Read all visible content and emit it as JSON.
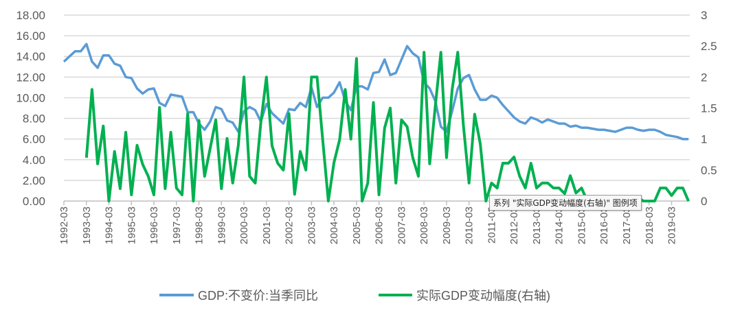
{
  "chart_data": {
    "type": "line",
    "title": "",
    "frequency": "quarterly",
    "x_start": "1992-03",
    "x_end": "2019-12",
    "x_tick_labels": [
      "1992-03",
      "1993-03",
      "1994-03",
      "1995-03",
      "1996-03",
      "1997-03",
      "1998-03",
      "1999-03",
      "2000-03",
      "2001-03",
      "2002-03",
      "2003-03",
      "2004-03",
      "2005-03",
      "2006-03",
      "2007-03",
      "2008-03",
      "2009-03",
      "2010-03",
      "2011-03",
      "2012-03",
      "2013-03",
      "2014-03",
      "2015-03",
      "2016-03",
      "2017-03",
      "2018-03",
      "2019-03"
    ],
    "y_left": {
      "min": 0,
      "max": 18,
      "step": 2,
      "tick_labels": [
        "0.00",
        "2.00",
        "4.00",
        "6.00",
        "8.00",
        "10.00",
        "12.00",
        "14.00",
        "16.00",
        "18.00"
      ]
    },
    "y_right": {
      "min": 0,
      "max": 3,
      "step": 0.5,
      "tick_labels": [
        "0",
        "0.5",
        "1",
        "1.5",
        "2",
        "2.5",
        "3"
      ]
    },
    "grid": true,
    "legend_position": "bottom",
    "series": [
      {
        "name": "GDP:不变价:当季同比",
        "axis": "left",
        "color": "#5b9bd5",
        "values": [
          13.5,
          14.0,
          14.5,
          14.5,
          15.2,
          13.5,
          12.9,
          14.1,
          14.1,
          13.3,
          13.1,
          12.0,
          11.9,
          10.9,
          10.4,
          10.8,
          10.9,
          9.5,
          9.2,
          10.3,
          10.2,
          10.1,
          8.6,
          8.6,
          7.5,
          6.9,
          7.7,
          9.1,
          8.9,
          7.8,
          7.6,
          6.7,
          8.7,
          9.1,
          8.8,
          7.7,
          9.4,
          8.5,
          8.0,
          7.5,
          8.9,
          8.8,
          9.5,
          9.1,
          11.0,
          9.1,
          10.0,
          10.0,
          10.5,
          11.5,
          9.7,
          8.8,
          11.1,
          11.1,
          10.8,
          12.4,
          12.5,
          13.7,
          12.2,
          12.4,
          13.7,
          15.0,
          14.3,
          13.9,
          11.5,
          10.9,
          9.7,
          7.2,
          6.7,
          8.7,
          10.9,
          11.9,
          12.2,
          10.8,
          9.8,
          9.8,
          10.2,
          10.0,
          9.3,
          8.7,
          8.1,
          7.7,
          7.5,
          8.1,
          7.9,
          7.6,
          7.9,
          7.7,
          7.5,
          7.5,
          7.2,
          7.3,
          7.1,
          7.1,
          7.0,
          6.9,
          6.9,
          6.8,
          6.7,
          6.9,
          7.1,
          7.1,
          6.9,
          6.8,
          6.9,
          6.9,
          6.7,
          6.4,
          6.3,
          6.2,
          6.0,
          6.0
        ]
      },
      {
        "name": "实际GDP变动幅度(右轴)",
        "axis": "right",
        "color": "#00b050",
        "values": [
          null,
          null,
          null,
          null,
          0.7,
          1.8,
          0.6,
          1.21,
          0,
          0.8,
          0.2,
          1.11,
          0.1,
          0.9,
          0.59,
          0.4,
          0.1,
          1.51,
          0.2,
          1.11,
          0.21,
          0.1,
          1.41,
          0,
          1.3,
          0.4,
          0.85,
          1.31,
          0.2,
          1.01,
          0.29,
          0.9,
          2.0,
          0.4,
          0.29,
          1.26,
          2.0,
          0.89,
          0.61,
          0.5,
          1.41,
          0.11,
          0.8,
          0.5,
          2.0,
          2.0,
          0.99,
          0,
          0.62,
          0.99,
          1.8,
          1.0,
          2.3,
          0,
          0.29,
          1.59,
          0.1,
          1.18,
          1.5,
          0.29,
          1.31,
          1.2,
          0.7,
          0.4,
          2.4,
          0.6,
          1.52,
          2.4,
          0.7,
          1.8,
          2.4,
          1.22,
          0.29,
          1.4,
          0.92,
          0,
          0.29,
          0.21,
          0.61,
          0.61,
          0.71,
          0.4,
          0.21,
          0.61,
          0.21,
          0.29,
          0.29,
          0.21,
          0.21,
          0.12,
          0.41,
          0.13,
          0.21,
          0,
          0.05,
          0.05,
          0,
          0.05,
          0.05,
          0,
          0.05,
          0.05,
          0.05,
          0,
          0,
          0,
          0.21,
          0.21,
          0.09,
          0.21,
          0.21,
          0
        ]
      }
    ]
  },
  "tooltip": {
    "text": "系列 \"实际GDP变动幅度(右轴)\" 图例项"
  }
}
